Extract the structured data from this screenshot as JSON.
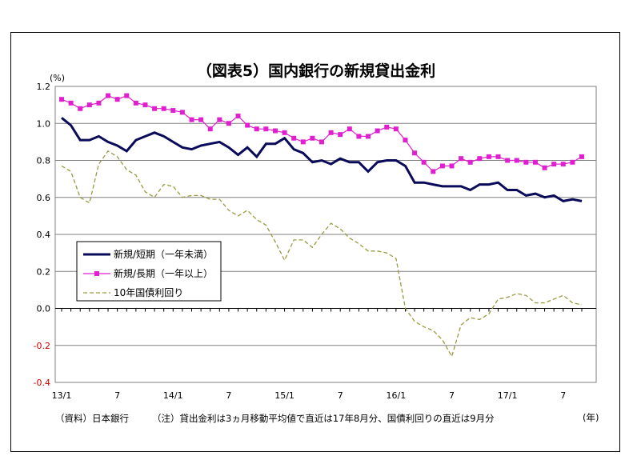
{
  "chart_data": {
    "type": "line",
    "title": "（図表5）国内銀行の新規貸出金利",
    "ylabel": "(%)",
    "xlabel": "(年)",
    "ylim": [
      -0.4,
      1.2
    ],
    "yticks": [
      "1.2",
      "1.0",
      "0.8",
      "0.6",
      "0.4",
      "0.2",
      "0.0",
      "-0.2",
      "-0.4"
    ],
    "ytick_values": [
      1.2,
      1.0,
      0.8,
      0.6,
      0.4,
      0.2,
      0.0,
      -0.2,
      -0.4
    ],
    "xtick_labels": [
      "13/1",
      "7",
      "14/1",
      "7",
      "15/1",
      "7",
      "16/1",
      "7",
      "17/1",
      "7"
    ],
    "xtick_index": [
      0,
      6,
      12,
      18,
      24,
      30,
      36,
      42,
      48,
      54
    ],
    "grid": true,
    "legend_position": "bottom-left",
    "series": [
      {
        "name": "新規/短期（一年未満）",
        "color": "#0a0a5a",
        "values": [
          1.03,
          0.99,
          0.91,
          0.91,
          0.93,
          0.9,
          0.88,
          0.85,
          0.91,
          0.93,
          0.95,
          0.93,
          0.9,
          0.87,
          0.86,
          0.88,
          0.89,
          0.9,
          0.87,
          0.83,
          0.87,
          0.82,
          0.89,
          0.89,
          0.92,
          0.86,
          0.84,
          0.79,
          0.8,
          0.78,
          0.81,
          0.79,
          0.79,
          0.74,
          0.79,
          0.8,
          0.8,
          0.77,
          0.68,
          0.68,
          0.67,
          0.66,
          0.66,
          0.66,
          0.64,
          0.67,
          0.67,
          0.68,
          0.64,
          0.64,
          0.61,
          0.62,
          0.6,
          0.61,
          0.58,
          0.59,
          0.58
        ]
      },
      {
        "name": "新規/長期（一年以上）",
        "color": "#e020d0",
        "values": [
          1.13,
          1.11,
          1.08,
          1.1,
          1.11,
          1.15,
          1.13,
          1.15,
          1.11,
          1.1,
          1.08,
          1.08,
          1.07,
          1.06,
          1.02,
          1.02,
          0.97,
          1.02,
          1.0,
          1.04,
          0.99,
          0.97,
          0.97,
          0.96,
          0.95,
          0.92,
          0.9,
          0.92,
          0.9,
          0.95,
          0.94,
          0.97,
          0.93,
          0.93,
          0.96,
          0.98,
          0.97,
          0.91,
          0.84,
          0.79,
          0.74,
          0.77,
          0.77,
          0.81,
          0.79,
          0.81,
          0.82,
          0.82,
          0.8,
          0.8,
          0.79,
          0.79,
          0.76,
          0.78,
          0.78,
          0.79,
          0.82
        ]
      },
      {
        "name": "10年国債利回り",
        "color": "#9a9a40",
        "values": [
          0.77,
          0.74,
          0.6,
          0.57,
          0.78,
          0.85,
          0.82,
          0.75,
          0.72,
          0.63,
          0.6,
          0.67,
          0.66,
          0.6,
          0.61,
          0.61,
          0.59,
          0.59,
          0.53,
          0.5,
          0.53,
          0.48,
          0.45,
          0.36,
          0.26,
          0.37,
          0.37,
          0.33,
          0.4,
          0.46,
          0.43,
          0.38,
          0.35,
          0.31,
          0.31,
          0.3,
          0.27,
          0.0,
          -0.07,
          -0.1,
          -0.12,
          -0.17,
          -0.26,
          -0.09,
          -0.05,
          -0.06,
          -0.03,
          0.05,
          0.06,
          0.08,
          0.07,
          0.03,
          0.03,
          0.05,
          0.07,
          0.03,
          0.02
        ]
      }
    ]
  },
  "footnote": {
    "source": "（資料）日本銀行",
    "note": "（注）貸出金利は3ヵ月移動平均値で直近は17年8月分、国債利回りの直近は9月分"
  }
}
